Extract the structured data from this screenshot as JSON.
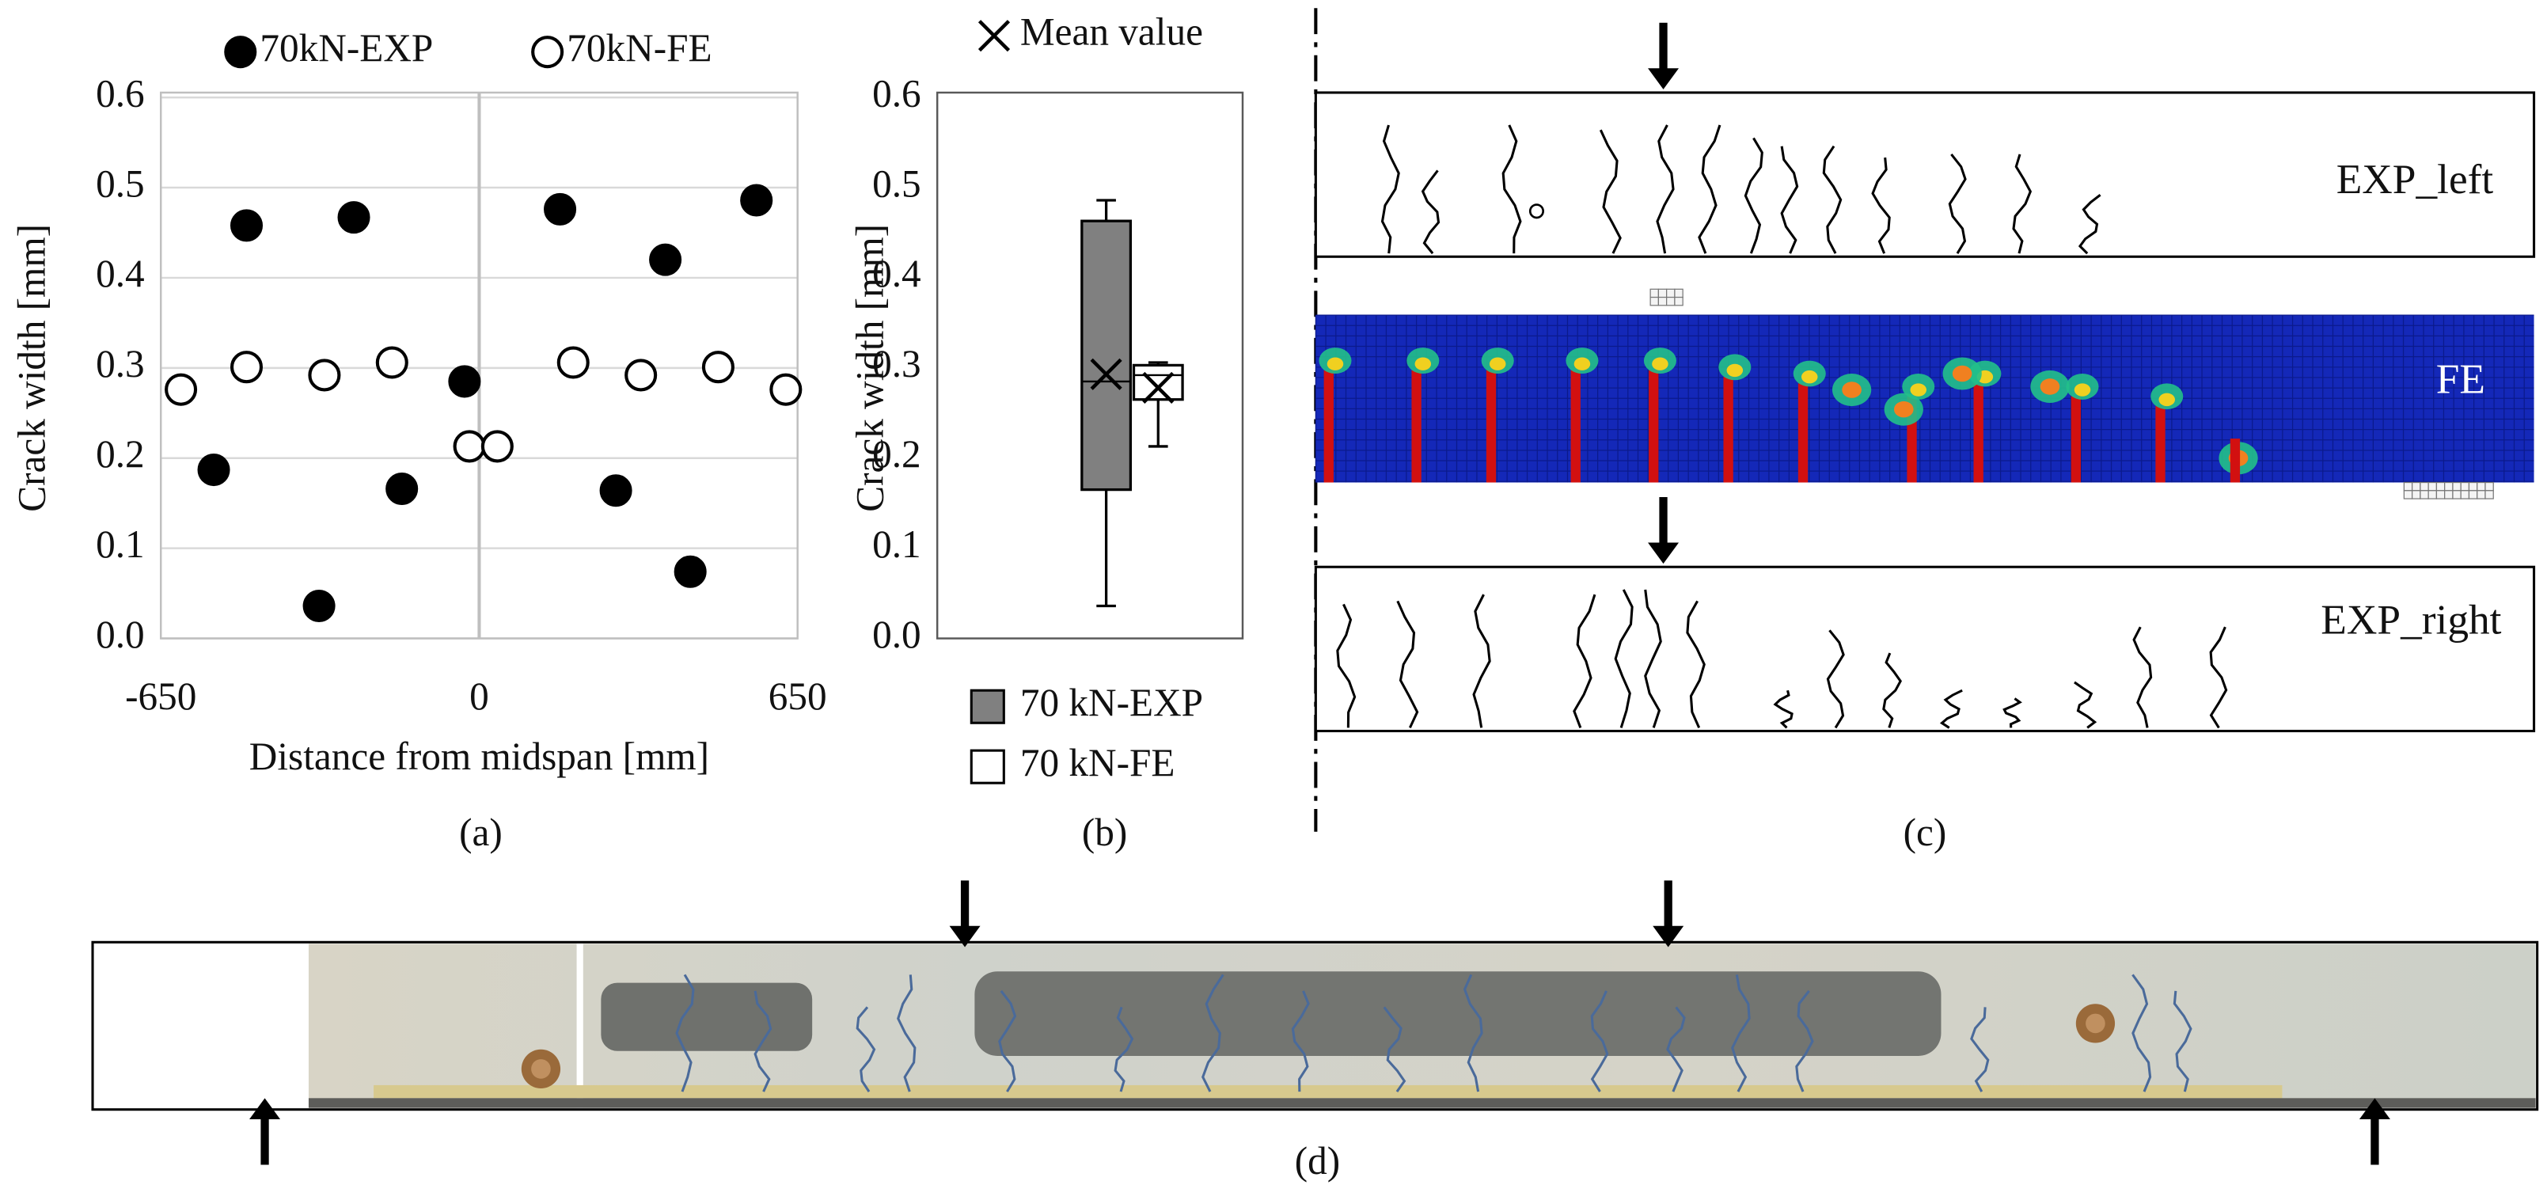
{
  "chart_data": [
    {
      "type": "scatter",
      "caption": "(a)",
      "xlabel": "Distance from midspan [mm]",
      "ylabel": "Crack width [mm]",
      "xlim": [
        -650,
        650
      ],
      "xticks": [
        -650,
        0,
        650
      ],
      "ylim": [
        0,
        0.6
      ],
      "yticks": [
        {
          "value": 0,
          "label": "0.0"
        },
        0.1,
        0.2,
        0.3,
        0.4,
        0.5,
        0.6
      ],
      "grid": true,
      "series": [
        {
          "name": "70kN-EXP",
          "color": "#000000",
          "marker": "filled",
          "x": [
            -475,
            -256,
            -542,
            -158,
            -327,
            -30,
            165,
            380,
            279,
            431,
            566
          ],
          "values": [
            0.458,
            0.467,
            0.187,
            0.166,
            0.036,
            0.285,
            0.476,
            0.42,
            0.164,
            0.074,
            0.486
          ]
        },
        {
          "name": "70kN-FE",
          "color": "#000000",
          "marker": "open",
          "x": [
            -609,
            -475,
            -316,
            -178,
            -20,
            37,
            192,
            330,
            488,
            626
          ],
          "values": [
            0.276,
            0.301,
            0.292,
            0.306,
            0.213,
            0.213,
            0.306,
            0.292,
            0.301,
            0.276
          ]
        }
      ]
    },
    {
      "type": "box",
      "caption": "(b)",
      "ylabel": "Crack width [mm]",
      "mean_label": "Mean value",
      "ylim": [
        0,
        0.6
      ],
      "yticks": [
        {
          "value": 0,
          "label": "0.0"
        },
        0.1,
        0.2,
        0.3,
        0.4,
        0.5,
        0.6
      ],
      "series": [
        {
          "name": "70 kN-EXP",
          "color": "#808080",
          "min": 0.036,
          "q1": 0.165,
          "median": 0.285,
          "q3": 0.463,
          "max": 0.486,
          "mean": 0.293
        },
        {
          "name": "70 kN-FE",
          "color": "#ffffff",
          "min": 0.213,
          "q1": 0.265,
          "median": 0.292,
          "q3": 0.303,
          "max": 0.306,
          "mean": 0.278
        }
      ]
    }
  ],
  "panel_c": {
    "caption": "(c)",
    "labels": [
      "EXP_left",
      "FE",
      "EXP_right"
    ]
  },
  "panel_d": {
    "caption": "(d)"
  }
}
